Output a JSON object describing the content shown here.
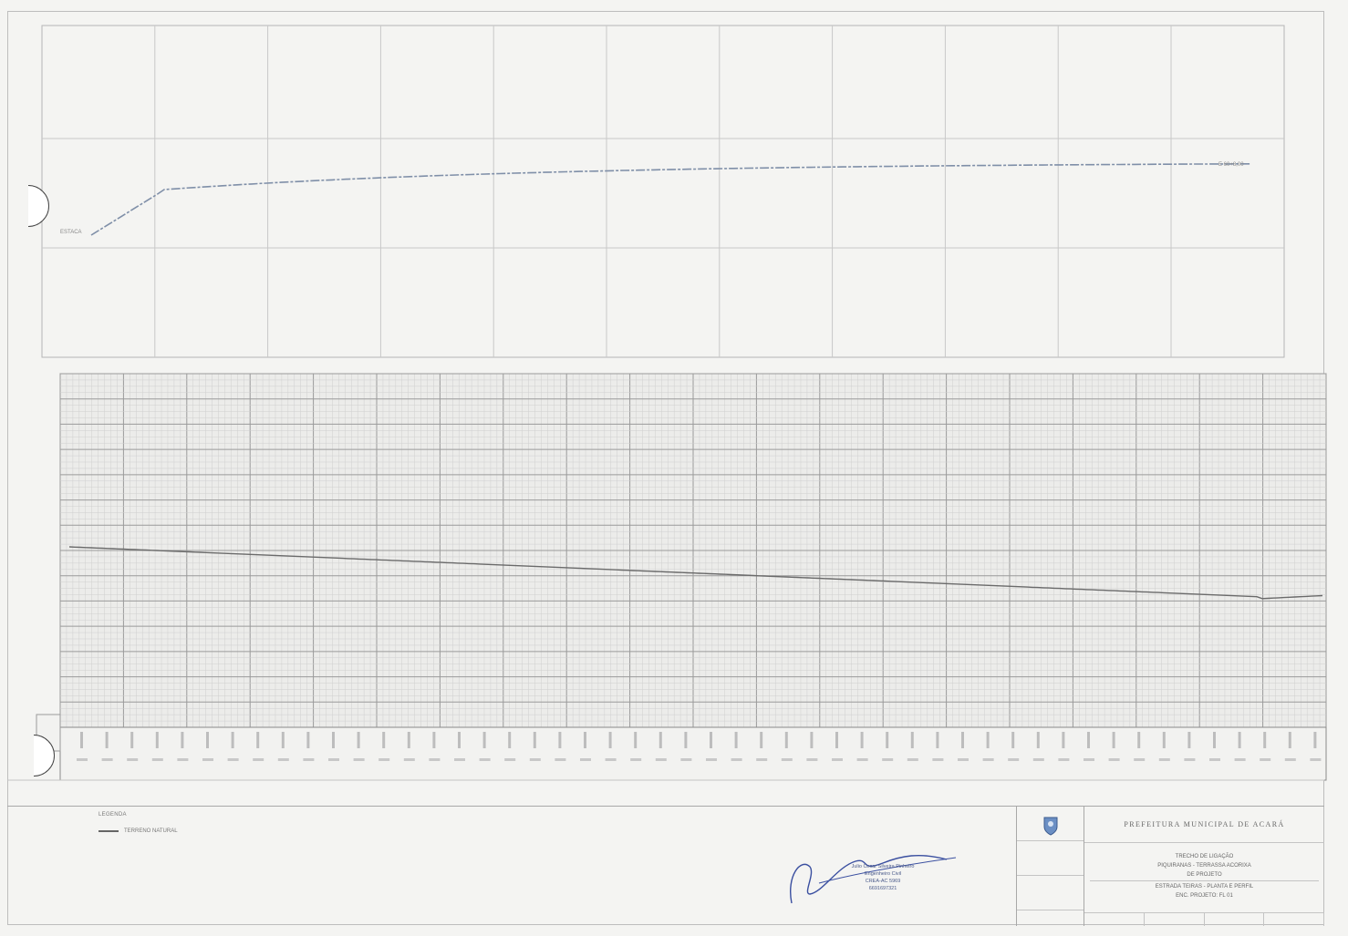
{
  "colors": {
    "paper": "#f4f4f2",
    "grid_fine": "#c9c9c9",
    "grid_bold": "#9a9a9a",
    "line": "#6a6a6a",
    "signature_ink": "#3a4fa0"
  },
  "legend": {
    "title": "LEGENDA",
    "item": "TERRENO NATURAL"
  },
  "plan": {
    "start_label": "ESTACA",
    "end_label": "E 60+8,00"
  },
  "signature": {
    "name": "Julio Cesar Silveira Pinheiro",
    "title": "Engenheiro Civil",
    "crea": "CREA-AC 5969",
    "registro": "6691697321"
  },
  "title_block": {
    "organization": "PREFEITURA MUNICIPAL DE ACARÁ",
    "lines": [
      "TRECHO DE LIGAÇÃO",
      "PIQUIRANAS - TERRASSA ACORIXA",
      "DE PROJETO",
      "ESTRADA TEIRAS - PLANTA E PERFIL",
      "ENC. PROJETO: FL 01"
    ]
  }
}
